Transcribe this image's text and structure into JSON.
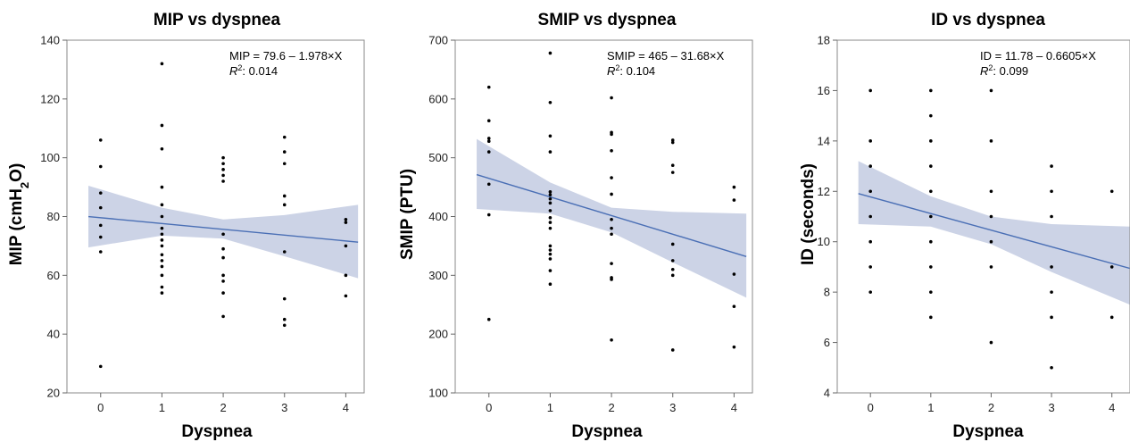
{
  "colors": {
    "band": "#ccd3e6",
    "line": "#4a6fb5",
    "point": "#000000",
    "frame": "#888888"
  },
  "chart_data": [
    {
      "type": "scatter",
      "title": "MIP vs dyspnea",
      "xlabel": "Dyspnea",
      "ylabel_main": "MIP (cmH",
      "ylabel_sub": "2",
      "ylabel_tail": "O)",
      "xlim": [
        -0.55,
        4.3
      ],
      "ylim": [
        20,
        140
      ],
      "xticks": [
        0,
        1,
        2,
        3,
        4
      ],
      "yticks": [
        20,
        40,
        60,
        80,
        100,
        120,
        140
      ],
      "equation": "MIP = 79.6 – 1.978×X",
      "r2_label": "R",
      "r2_sup": "2",
      "r2_value": ": 0.014",
      "fit": {
        "intercept": 79.6,
        "slope": -1.978,
        "x_range": [
          -0.2,
          4.2
        ]
      },
      "ci": [
        {
          "x": -0.2,
          "lo": 69.5,
          "hi": 90.5
        },
        {
          "x": 1,
          "lo": 73.5,
          "hi": 83
        },
        {
          "x": 2,
          "lo": 72.5,
          "hi": 79
        },
        {
          "x": 3,
          "lo": 66.5,
          "hi": 80.5
        },
        {
          "x": 4.2,
          "lo": 59,
          "hi": 84
        }
      ],
      "points": [
        {
          "x": 0,
          "y": 106
        },
        {
          "x": 0,
          "y": 97
        },
        {
          "x": 0,
          "y": 88
        },
        {
          "x": 0,
          "y": 83
        },
        {
          "x": 0,
          "y": 77
        },
        {
          "x": 0,
          "y": 73
        },
        {
          "x": 0,
          "y": 68
        },
        {
          "x": 0,
          "y": 29
        },
        {
          "x": 1,
          "y": 132
        },
        {
          "x": 1,
          "y": 111
        },
        {
          "x": 1,
          "y": 103
        },
        {
          "x": 1,
          "y": 90
        },
        {
          "x": 1,
          "y": 84
        },
        {
          "x": 1,
          "y": 80
        },
        {
          "x": 1,
          "y": 76
        },
        {
          "x": 1,
          "y": 74
        },
        {
          "x": 1,
          "y": 72
        },
        {
          "x": 1,
          "y": 70
        },
        {
          "x": 1,
          "y": 67
        },
        {
          "x": 1,
          "y": 65
        },
        {
          "x": 1,
          "y": 63
        },
        {
          "x": 1,
          "y": 60
        },
        {
          "x": 1,
          "y": 56
        },
        {
          "x": 1,
          "y": 54
        },
        {
          "x": 2,
          "y": 100
        },
        {
          "x": 2,
          "y": 98
        },
        {
          "x": 2,
          "y": 96
        },
        {
          "x": 2,
          "y": 94
        },
        {
          "x": 2,
          "y": 92
        },
        {
          "x": 2,
          "y": 74
        },
        {
          "x": 2,
          "y": 69
        },
        {
          "x": 2,
          "y": 66
        },
        {
          "x": 2,
          "y": 60
        },
        {
          "x": 2,
          "y": 58
        },
        {
          "x": 2,
          "y": 54
        },
        {
          "x": 2,
          "y": 46
        },
        {
          "x": 3,
          "y": 107
        },
        {
          "x": 3,
          "y": 102
        },
        {
          "x": 3,
          "y": 98
        },
        {
          "x": 3,
          "y": 87
        },
        {
          "x": 3,
          "y": 84
        },
        {
          "x": 3,
          "y": 68
        },
        {
          "x": 3,
          "y": 52
        },
        {
          "x": 3,
          "y": 45
        },
        {
          "x": 3,
          "y": 43
        },
        {
          "x": 4,
          "y": 79
        },
        {
          "x": 4,
          "y": 78
        },
        {
          "x": 4,
          "y": 70
        },
        {
          "x": 4,
          "y": 60
        },
        {
          "x": 4,
          "y": 53
        }
      ]
    },
    {
      "type": "scatter",
      "title": "SMIP vs dyspnea",
      "xlabel": "Dyspnea",
      "ylabel_main": "SMIP (PTU)",
      "ylabel_sub": "",
      "ylabel_tail": "",
      "xlim": [
        -0.55,
        4.3
      ],
      "ylim": [
        100,
        700
      ],
      "xticks": [
        0,
        1,
        2,
        3,
        4
      ],
      "yticks": [
        100,
        200,
        300,
        400,
        500,
        600,
        700
      ],
      "equation": "SMIP = 465 – 31.68×X",
      "r2_label": "R",
      "r2_sup": "2",
      "r2_value": ": 0.104",
      "fit": {
        "intercept": 465,
        "slope": -31.68,
        "x_range": [
          -0.2,
          4.2
        ]
      },
      "ci": [
        {
          "x": -0.2,
          "lo": 413,
          "hi": 532
        },
        {
          "x": 1,
          "lo": 405,
          "hi": 458
        },
        {
          "x": 2,
          "lo": 373,
          "hi": 415
        },
        {
          "x": 3,
          "lo": 322,
          "hi": 408
        },
        {
          "x": 4.2,
          "lo": 262,
          "hi": 405
        }
      ],
      "points": [
        {
          "x": 0,
          "y": 620
        },
        {
          "x": 0,
          "y": 563
        },
        {
          "x": 0,
          "y": 533
        },
        {
          "x": 0,
          "y": 528
        },
        {
          "x": 0,
          "y": 510
        },
        {
          "x": 0,
          "y": 455
        },
        {
          "x": 0,
          "y": 403
        },
        {
          "x": 0,
          "y": 225
        },
        {
          "x": 1,
          "y": 678
        },
        {
          "x": 1,
          "y": 594
        },
        {
          "x": 1,
          "y": 537
        },
        {
          "x": 1,
          "y": 510
        },
        {
          "x": 1,
          "y": 442
        },
        {
          "x": 1,
          "y": 437
        },
        {
          "x": 1,
          "y": 430
        },
        {
          "x": 1,
          "y": 423
        },
        {
          "x": 1,
          "y": 410
        },
        {
          "x": 1,
          "y": 398
        },
        {
          "x": 1,
          "y": 390
        },
        {
          "x": 1,
          "y": 380
        },
        {
          "x": 1,
          "y": 350
        },
        {
          "x": 1,
          "y": 343
        },
        {
          "x": 1,
          "y": 336
        },
        {
          "x": 1,
          "y": 328
        },
        {
          "x": 1,
          "y": 308
        },
        {
          "x": 1,
          "y": 285
        },
        {
          "x": 2,
          "y": 602
        },
        {
          "x": 2,
          "y": 543
        },
        {
          "x": 2,
          "y": 540
        },
        {
          "x": 2,
          "y": 512
        },
        {
          "x": 2,
          "y": 466
        },
        {
          "x": 2,
          "y": 438
        },
        {
          "x": 2,
          "y": 395
        },
        {
          "x": 2,
          "y": 380
        },
        {
          "x": 2,
          "y": 370
        },
        {
          "x": 2,
          "y": 320
        },
        {
          "x": 2,
          "y": 296
        },
        {
          "x": 2,
          "y": 293
        },
        {
          "x": 2,
          "y": 190
        },
        {
          "x": 3,
          "y": 530
        },
        {
          "x": 3,
          "y": 526
        },
        {
          "x": 3,
          "y": 487
        },
        {
          "x": 3,
          "y": 475
        },
        {
          "x": 3,
          "y": 353
        },
        {
          "x": 3,
          "y": 325
        },
        {
          "x": 3,
          "y": 310
        },
        {
          "x": 3,
          "y": 300
        },
        {
          "x": 3,
          "y": 173
        },
        {
          "x": 4,
          "y": 450
        },
        {
          "x": 4,
          "y": 428
        },
        {
          "x": 4,
          "y": 302
        },
        {
          "x": 4,
          "y": 247
        },
        {
          "x": 4,
          "y": 178
        }
      ]
    },
    {
      "type": "scatter",
      "title": "ID vs dyspnea",
      "xlabel": "Dyspnea",
      "ylabel_main": "ID (seconds)",
      "ylabel_sub": "",
      "ylabel_tail": "",
      "xlim": [
        -0.55,
        4.3
      ],
      "ylim": [
        4,
        18
      ],
      "xticks": [
        0,
        1,
        2,
        3,
        4
      ],
      "yticks": [
        4,
        6,
        8,
        10,
        12,
        14,
        16,
        18
      ],
      "equation": "ID = 11.78 – 0.6605×X",
      "r2_label": "R",
      "r2_sup": "2",
      "r2_value": ": 0.099",
      "fit": {
        "intercept": 11.78,
        "slope": -0.6605,
        "x_range": [
          -0.2,
          4.3
        ]
      },
      "ci": [
        {
          "x": -0.2,
          "lo": 10.7,
          "hi": 13.2
        },
        {
          "x": 1,
          "lo": 10.6,
          "hi": 11.8
        },
        {
          "x": 2,
          "lo": 9.9,
          "hi": 11.0
        },
        {
          "x": 3,
          "lo": 8.8,
          "hi": 10.7
        },
        {
          "x": 4.3,
          "lo": 7.5,
          "hi": 10.6
        }
      ],
      "points": [
        {
          "x": 0,
          "y": 16
        },
        {
          "x": 0,
          "y": 14
        },
        {
          "x": 0,
          "y": 13
        },
        {
          "x": 0,
          "y": 12
        },
        {
          "x": 0,
          "y": 11
        },
        {
          "x": 0,
          "y": 10
        },
        {
          "x": 0,
          "y": 9
        },
        {
          "x": 0,
          "y": 8
        },
        {
          "x": 1,
          "y": 16
        },
        {
          "x": 1,
          "y": 15
        },
        {
          "x": 1,
          "y": 14
        },
        {
          "x": 1,
          "y": 13
        },
        {
          "x": 1,
          "y": 12
        },
        {
          "x": 1,
          "y": 11
        },
        {
          "x": 1,
          "y": 10
        },
        {
          "x": 1,
          "y": 9
        },
        {
          "x": 1,
          "y": 8
        },
        {
          "x": 1,
          "y": 7
        },
        {
          "x": 2,
          "y": 16
        },
        {
          "x": 2,
          "y": 14
        },
        {
          "x": 2,
          "y": 12
        },
        {
          "x": 2,
          "y": 11
        },
        {
          "x": 2,
          "y": 10
        },
        {
          "x": 2,
          "y": 9
        },
        {
          "x": 2,
          "y": 6
        },
        {
          "x": 3,
          "y": 13
        },
        {
          "x": 3,
          "y": 12
        },
        {
          "x": 3,
          "y": 11
        },
        {
          "x": 3,
          "y": 9
        },
        {
          "x": 3,
          "y": 8
        },
        {
          "x": 3,
          "y": 7
        },
        {
          "x": 3,
          "y": 5
        },
        {
          "x": 4,
          "y": 12
        },
        {
          "x": 4,
          "y": 9
        },
        {
          "x": 4,
          "y": 7
        }
      ]
    }
  ]
}
